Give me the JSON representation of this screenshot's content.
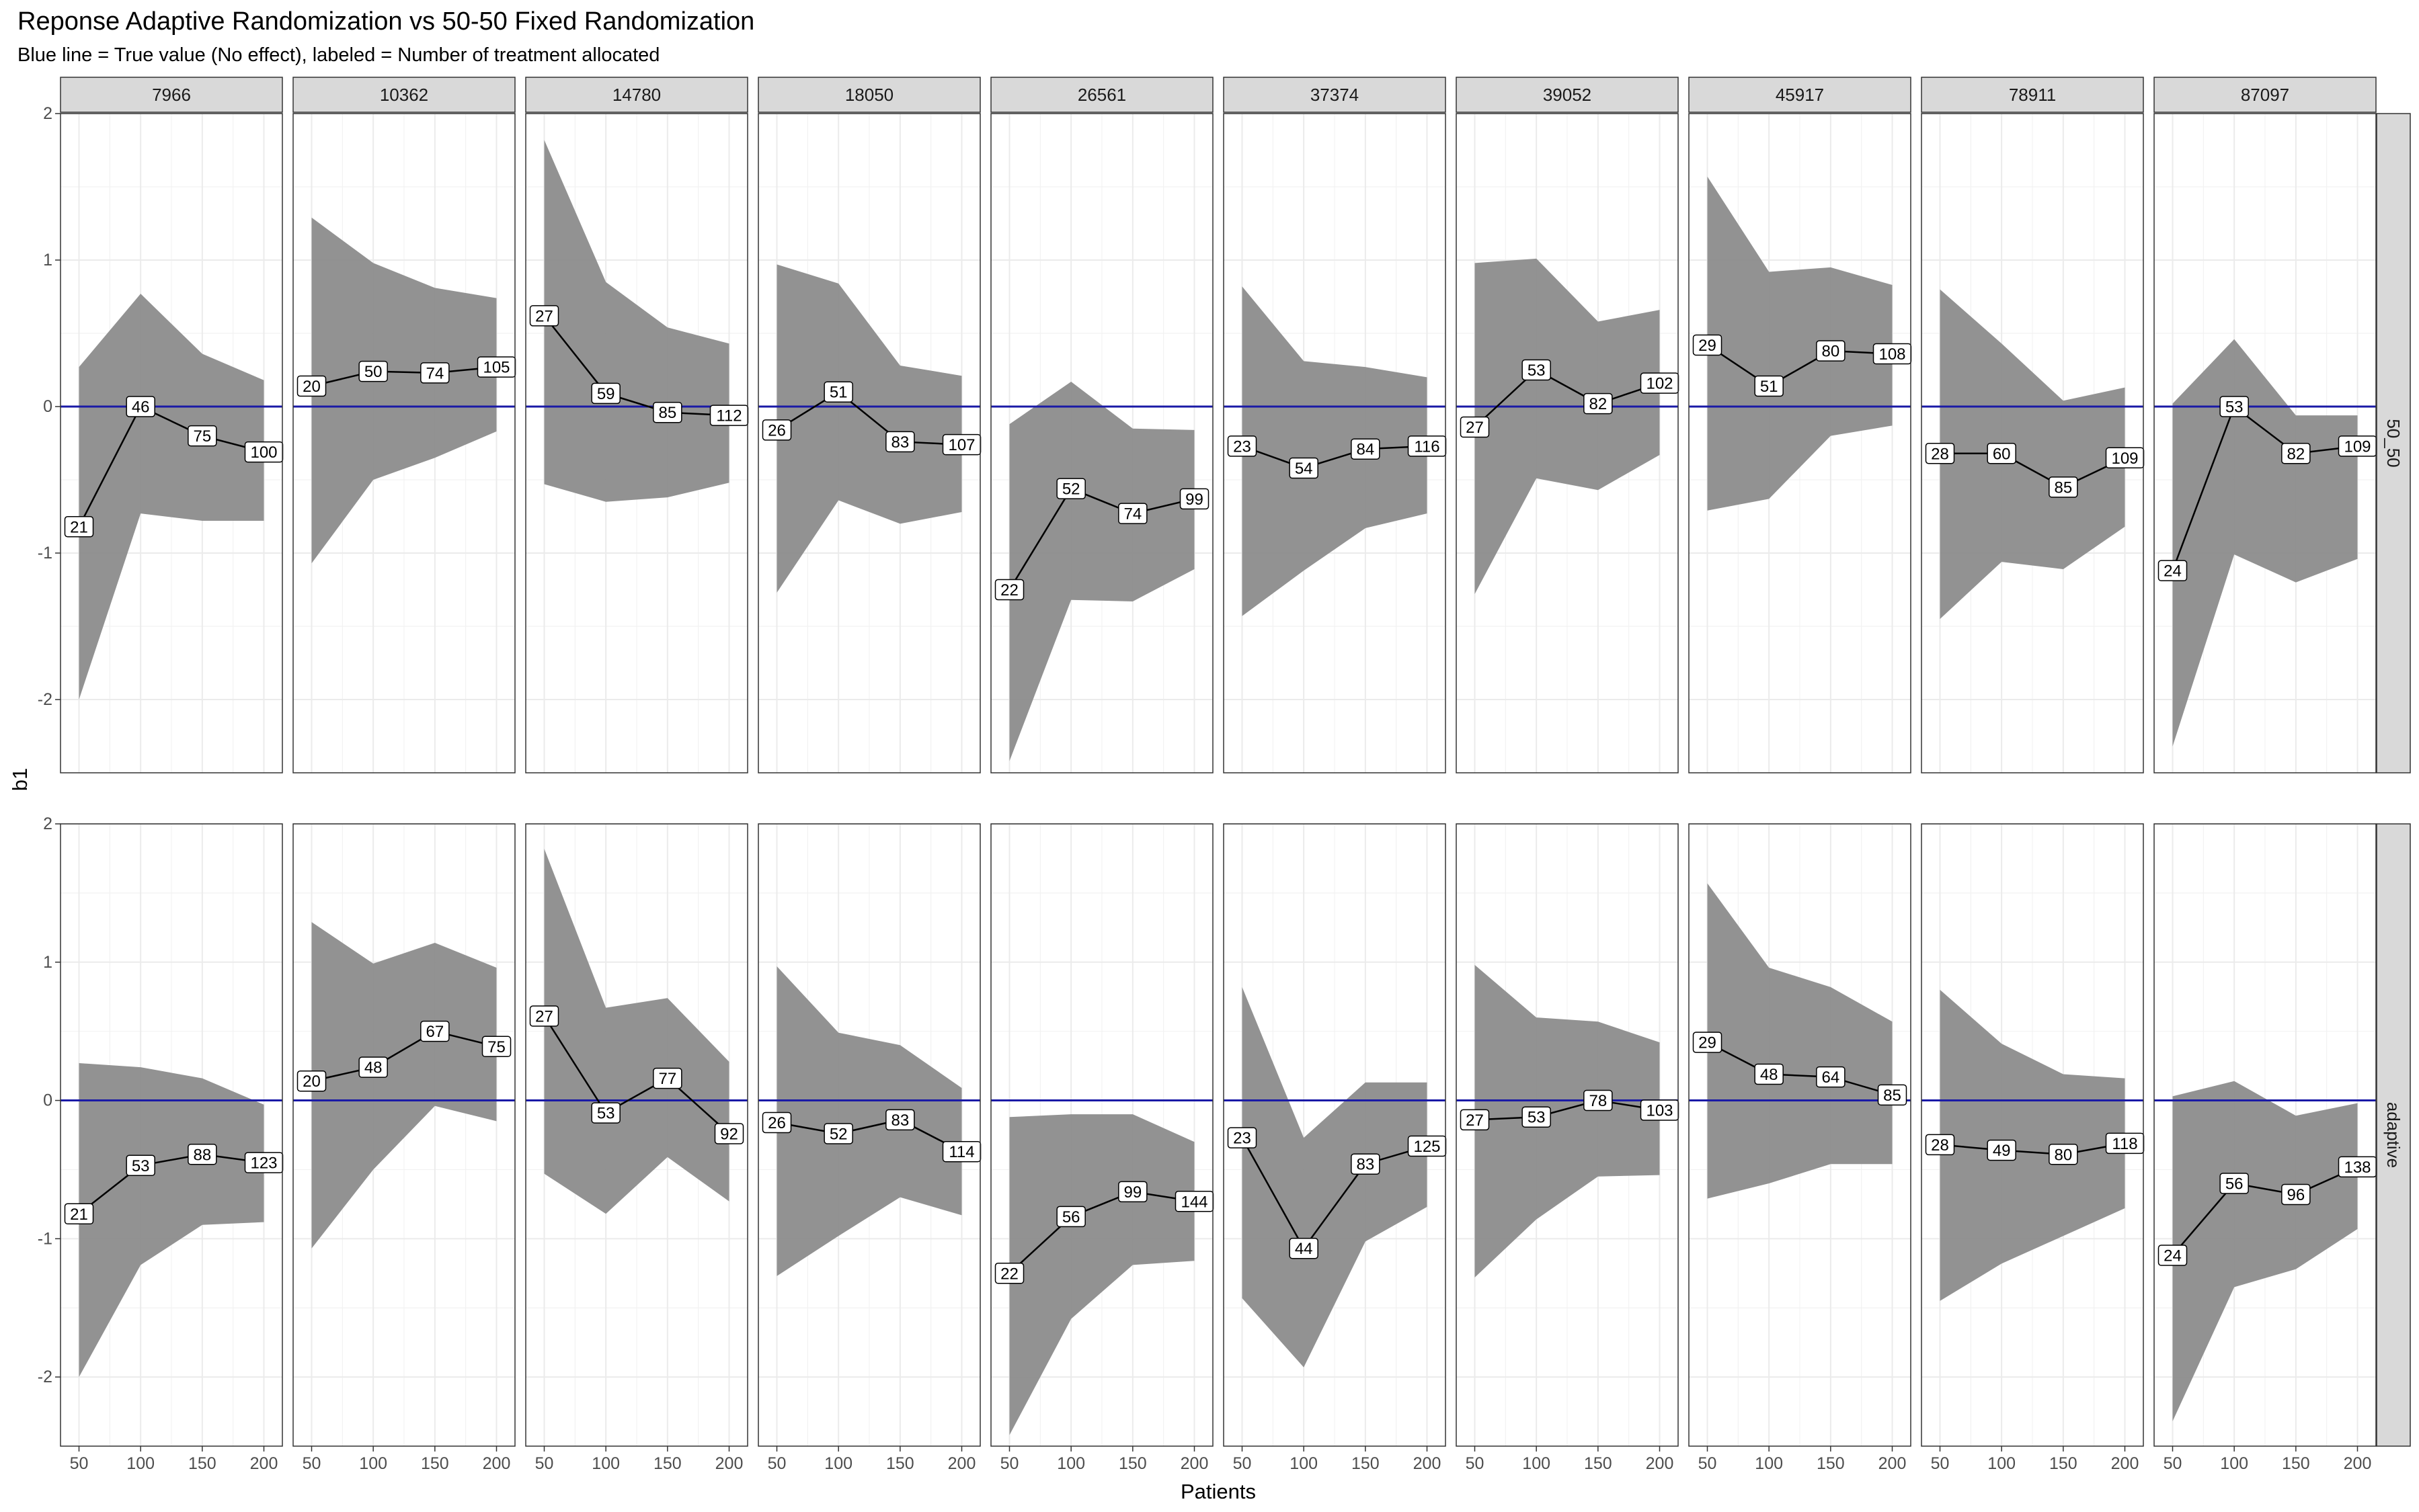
{
  "chart_data": {
    "type": "line",
    "title": "Reponse Adaptive Randomization vs 50-50 Fixed Randomization",
    "subtitle": "Blue line = True value (No effect), labeled = Number of treatment allocated",
    "xlabel": "Patients",
    "ylabel": "b1",
    "x": [
      50,
      100,
      150,
      200
    ],
    "x_ticks": [
      "50",
      "100",
      "150",
      "200"
    ],
    "ylim": [
      -2.5,
      2.0
    ],
    "y_ticks": [
      "-2",
      "-1",
      "0",
      "1",
      "2"
    ],
    "true_value": 0,
    "grid": true,
    "facet_columns": [
      "7966",
      "10362",
      "14780",
      "18050",
      "26561",
      "37374",
      "39052",
      "45917",
      "78911",
      "87097"
    ],
    "facet_rows": [
      "50_50",
      "adaptive"
    ],
    "colors": {
      "ribbon": "#8c8c8c",
      "line": "#000000",
      "true_value": "#1a1aa6",
      "strip": "#d9d9d9",
      "panel_border": "#333333",
      "grid": "#ebebeb"
    },
    "panels": {
      "50_50": [
        {
          "seed": "7966",
          "estimate": [
            -0.82,
            0.0,
            -0.2,
            -0.31
          ],
          "lower": [
            -2.0,
            -0.73,
            -0.78,
            -0.78
          ],
          "upper": [
            0.27,
            0.77,
            0.36,
            0.18
          ],
          "labels": [
            "21",
            "46",
            "75",
            "100"
          ]
        },
        {
          "seed": "10362",
          "estimate": [
            0.14,
            0.24,
            0.23,
            0.27
          ],
          "lower": [
            -1.07,
            -0.5,
            -0.35,
            -0.17
          ],
          "upper": [
            1.29,
            0.98,
            0.81,
            0.74
          ],
          "labels": [
            "20",
            "50",
            "74",
            "105"
          ]
        },
        {
          "seed": "14780",
          "estimate": [
            0.62,
            0.09,
            -0.04,
            -0.06
          ],
          "lower": [
            -0.53,
            -0.65,
            -0.62,
            -0.52
          ],
          "upper": [
            1.82,
            0.85,
            0.54,
            0.43
          ],
          "labels": [
            "27",
            "59",
            "85",
            "112"
          ]
        },
        {
          "seed": "18050",
          "estimate": [
            -0.16,
            0.1,
            -0.24,
            -0.26
          ],
          "lower": [
            -1.27,
            -0.64,
            -0.8,
            -0.72
          ],
          "upper": [
            0.97,
            0.84,
            0.28,
            0.21
          ],
          "labels": [
            "26",
            "51",
            "83",
            "107"
          ]
        },
        {
          "seed": "26561",
          "estimate": [
            -1.25,
            -0.56,
            -0.73,
            -0.63
          ],
          "lower": [
            -2.42,
            -1.32,
            -1.33,
            -1.11
          ],
          "upper": [
            -0.12,
            0.17,
            -0.15,
            -0.16
          ],
          "labels": [
            "22",
            "52",
            "74",
            "99"
          ]
        },
        {
          "seed": "37374",
          "estimate": [
            -0.27,
            -0.42,
            -0.29,
            -0.27
          ],
          "lower": [
            -1.43,
            -1.12,
            -0.83,
            -0.73
          ],
          "upper": [
            0.82,
            0.31,
            0.27,
            0.2
          ],
          "labels": [
            "23",
            "54",
            "84",
            "116"
          ]
        },
        {
          "seed": "39052",
          "estimate": [
            -0.14,
            0.25,
            0.02,
            0.16
          ],
          "lower": [
            -1.28,
            -0.49,
            -0.57,
            -0.33
          ],
          "upper": [
            0.98,
            1.01,
            0.58,
            0.66
          ],
          "labels": [
            "27",
            "53",
            "82",
            "102"
          ]
        },
        {
          "seed": "45917",
          "estimate": [
            0.42,
            0.14,
            0.38,
            0.36
          ],
          "lower": [
            -0.71,
            -0.63,
            -0.2,
            -0.13
          ],
          "upper": [
            1.57,
            0.92,
            0.95,
            0.83
          ],
          "labels": [
            "29",
            "51",
            "80",
            "108"
          ]
        },
        {
          "seed": "78911",
          "estimate": [
            -0.32,
            -0.32,
            -0.55,
            -0.35
          ],
          "lower": [
            -1.45,
            -1.06,
            -1.11,
            -0.82
          ],
          "upper": [
            0.8,
            0.43,
            0.04,
            0.13
          ],
          "labels": [
            "28",
            "60",
            "85",
            "109"
          ]
        },
        {
          "seed": "87097",
          "estimate": [
            -1.12,
            0.0,
            -0.32,
            -0.27
          ],
          "lower": [
            -2.32,
            -1.01,
            -1.2,
            -1.04
          ],
          "upper": [
            0.02,
            0.46,
            -0.06,
            -0.06
          ],
          "labels": [
            "24",
            "53",
            "82",
            "109"
          ]
        }
      ],
      "adaptive": [
        {
          "seed": "7966",
          "estimate": [
            -0.82,
            -0.47,
            -0.39,
            -0.45
          ],
          "lower": [
            -2.0,
            -1.19,
            -0.9,
            -0.88
          ],
          "upper": [
            0.27,
            0.24,
            0.16,
            -0.03
          ],
          "labels": [
            "21",
            "53",
            "88",
            "123"
          ]
        },
        {
          "seed": "10362",
          "estimate": [
            0.14,
            0.24,
            0.5,
            0.39
          ],
          "lower": [
            -1.07,
            -0.5,
            -0.04,
            -0.15
          ],
          "upper": [
            1.29,
            0.99,
            1.14,
            0.96
          ],
          "labels": [
            "20",
            "48",
            "67",
            "75"
          ]
        },
        {
          "seed": "14780",
          "estimate": [
            0.61,
            -0.09,
            0.16,
            -0.24
          ],
          "lower": [
            -0.53,
            -0.82,
            -0.41,
            -0.73
          ],
          "upper": [
            1.82,
            0.67,
            0.74,
            0.28
          ],
          "labels": [
            "27",
            "53",
            "77",
            "92"
          ]
        },
        {
          "seed": "18050",
          "estimate": [
            -0.16,
            -0.24,
            -0.14,
            -0.37
          ],
          "lower": [
            -1.27,
            -0.98,
            -0.7,
            -0.83
          ],
          "upper": [
            0.97,
            0.49,
            0.4,
            0.09
          ],
          "labels": [
            "26",
            "52",
            "83",
            "114"
          ]
        },
        {
          "seed": "26561",
          "estimate": [
            -1.25,
            -0.84,
            -0.66,
            -0.73
          ],
          "lower": [
            -2.42,
            -1.58,
            -1.19,
            -1.16
          ],
          "upper": [
            -0.12,
            -0.1,
            -0.1,
            -0.3
          ],
          "labels": [
            "22",
            "56",
            "99",
            "144"
          ]
        },
        {
          "seed": "37374",
          "estimate": [
            -0.27,
            -1.07,
            -0.46,
            -0.33
          ],
          "lower": [
            -1.43,
            -1.93,
            -1.02,
            -0.77
          ],
          "upper": [
            0.82,
            -0.27,
            0.13,
            0.13
          ],
          "labels": [
            "23",
            "44",
            "83",
            "125"
          ]
        },
        {
          "seed": "39052",
          "estimate": [
            -0.14,
            -0.12,
            0.0,
            -0.07
          ],
          "lower": [
            -1.28,
            -0.86,
            -0.55,
            -0.54
          ],
          "upper": [
            0.98,
            0.6,
            0.57,
            0.42
          ],
          "labels": [
            "27",
            "53",
            "78",
            "103"
          ]
        },
        {
          "seed": "45917",
          "estimate": [
            0.42,
            0.19,
            0.17,
            0.04
          ],
          "lower": [
            -0.71,
            -0.6,
            -0.46,
            -0.46
          ],
          "upper": [
            1.57,
            0.96,
            0.82,
            0.57
          ],
          "labels": [
            "29",
            "48",
            "64",
            "85"
          ]
        },
        {
          "seed": "78911",
          "estimate": [
            -0.32,
            -0.36,
            -0.39,
            -0.31
          ],
          "lower": [
            -1.45,
            -1.18,
            -0.98,
            -0.78
          ],
          "upper": [
            0.8,
            0.41,
            0.19,
            0.16
          ],
          "labels": [
            "28",
            "49",
            "80",
            "118"
          ]
        },
        {
          "seed": "87097",
          "estimate": [
            -1.12,
            -0.6,
            -0.68,
            -0.48
          ],
          "lower": [
            -2.32,
            -1.35,
            -1.22,
            -0.93
          ],
          "upper": [
            0.03,
            0.14,
            -0.11,
            -0.02
          ],
          "labels": [
            "24",
            "56",
            "96",
            "138"
          ]
        }
      ]
    }
  }
}
